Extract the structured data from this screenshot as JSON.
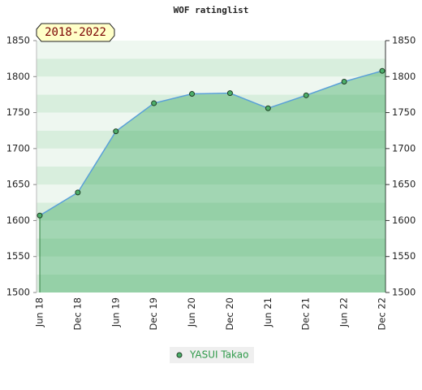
{
  "chart_data": {
    "type": "area",
    "title": "WOF ratinglist",
    "period": "2018-2022",
    "categories": [
      "Jun 18",
      "Dec 18",
      "Jun 19",
      "Dec 19",
      "Jun 20",
      "Dec 20",
      "Jun 21",
      "Dec 21",
      "Jun 22",
      "Dec 22"
    ],
    "series": [
      {
        "name": "YASUI Takao",
        "color": "#5aa0d8",
        "values": [
          1607,
          1639,
          1724,
          1763,
          1776,
          1777,
          1756,
          1774,
          1793,
          1808
        ]
      }
    ],
    "ylim": [
      1500,
      1850
    ],
    "yticks": [
      1500,
      1550,
      1600,
      1650,
      1700,
      1750,
      1800,
      1850
    ],
    "y2lim": [
      1500,
      1850
    ],
    "y2ticks": [
      1500,
      1550,
      1600,
      1650,
      1700,
      1750,
      1800,
      1850
    ],
    "grid": true,
    "legend": "bottom"
  }
}
